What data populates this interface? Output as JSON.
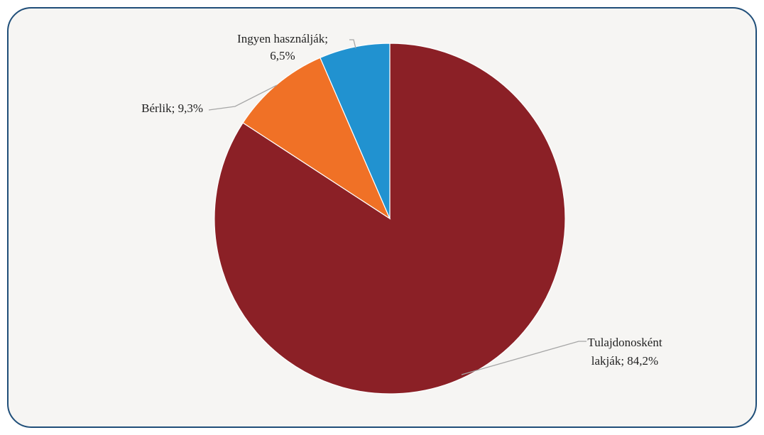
{
  "chart_data": {
    "type": "pie",
    "title": "",
    "slices": [
      {
        "label_lines": [
          "Tulajdonosként",
          "lakják; 84,2%"
        ],
        "category": "Tulajdonosként lakják",
        "value": 84.2,
        "color": "#8b2026"
      },
      {
        "label_lines": [
          "Bérlik; 9,3%"
        ],
        "category": "Bérlik",
        "value": 9.3,
        "color": "#f07126"
      },
      {
        "label_lines": [
          "Ingyen használják;",
          "6,5%"
        ],
        "category": "Ingyen használják",
        "value": 6.5,
        "color": "#2192d0"
      }
    ],
    "legend": "none",
    "data_labels": "outside with leader lines",
    "start": "12 o'clock",
    "direction": "clockwise"
  }
}
